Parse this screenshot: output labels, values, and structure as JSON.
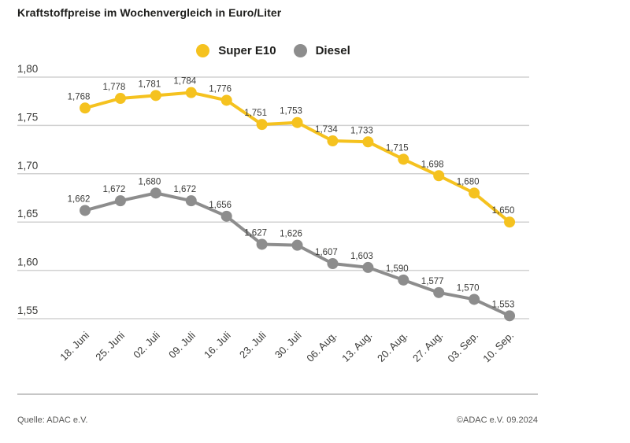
{
  "chart_data": {
    "type": "line",
    "title": "Kraftstoffpreise im Wochenvergleich in Euro/Liter",
    "categories": [
      "18. Juni",
      "25. Juni",
      "02. Juli",
      "09. Juli",
      "16. Juli",
      "23. Juli",
      "30. Juli",
      "06. Aug.",
      "13. Aug.",
      "20. Aug.",
      "27. Aug.",
      "03. Sep.",
      "10. Sep."
    ],
    "series": [
      {
        "name": "Super E10",
        "color": "#f5c21f",
        "values": [
          1.768,
          1.778,
          1.781,
          1.784,
          1.776,
          1.751,
          1.753,
          1.734,
          1.733,
          1.715,
          1.698,
          1.68,
          1.65
        ],
        "labels": [
          "1,768",
          "1,778",
          "1,781",
          "1,784",
          "1,776",
          "1,751",
          "1,753",
          "1,734",
          "1,733",
          "1,715",
          "1,698",
          "1,680",
          "1,650"
        ]
      },
      {
        "name": "Diesel",
        "color": "#8d8d8d",
        "values": [
          1.662,
          1.672,
          1.68,
          1.672,
          1.656,
          1.627,
          1.626,
          1.607,
          1.603,
          1.59,
          1.577,
          1.57,
          1.553
        ],
        "labels": [
          "1,662",
          "1,672",
          "1,680",
          "1,672",
          "1,656",
          "1,627",
          "1,626",
          "1,607",
          "1,603",
          "1,590",
          "1,577",
          "1,570",
          "1,553"
        ]
      }
    ],
    "xlabel": "",
    "ylabel": "",
    "yticks": [
      1.8,
      1.75,
      1.7,
      1.65,
      1.6,
      1.55
    ],
    "ytick_labels": [
      "1,80",
      "1,75",
      "1,70",
      "1,65",
      "1,60",
      "1,55"
    ],
    "ylim": [
      1.53,
      1.82
    ],
    "grid": true,
    "legend_position": "top-center",
    "decimal_separator": ","
  },
  "footer": {
    "source": "Quelle: ADAC e.V.",
    "copyright": "©ADAC e.V. 09.2024"
  },
  "colors": {
    "super_e10": "#f5c21f",
    "diesel": "#8d8d8d",
    "gridline": "#d2d2d2",
    "text_dark": "#1d1d1b",
    "text_label": "#3a3a38",
    "footer_text": "#575756"
  }
}
